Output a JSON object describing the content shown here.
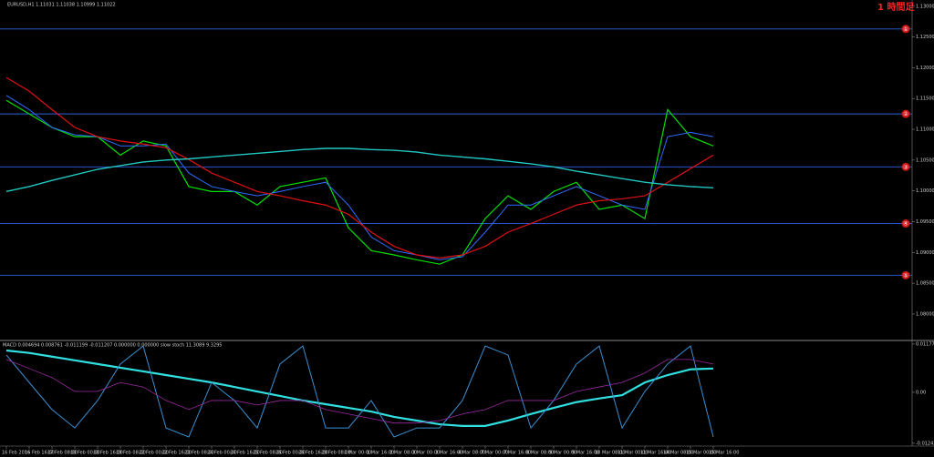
{
  "chart_data": [
    {
      "type": "line",
      "title": "EURUSD,H1  1.11031 1.11038 1.10999 1.11022",
      "annotation": "1 時間足",
      "categories": [
        "16 Feb 2016",
        "16 Feb 16:00",
        "17 Feb 08:00",
        "18 Feb 00:00",
        "18 Feb 16:00",
        "19 Feb 08:00",
        "22 Feb 00:00",
        "22 Feb 16:00",
        "23 Feb 08:00",
        "24 Feb 00:00",
        "24 Feb 16:00",
        "25 Feb 08:00",
        "26 Feb 00:00",
        "26 Feb 16:00",
        "29 Feb 08:00",
        "1 Mar 00:00",
        "1 Mar 16:00",
        "2 Mar 08:00",
        "3 Mar 00:00",
        "3 Mar 16:00",
        "4 Mar 08:00",
        "7 Mar 00:00",
        "7 Mar 16:00",
        "8 Mar 08:00",
        "9 Mar 00:00",
        "9 Mar 16:00",
        "10 Mar 08:00",
        "11 Mar 00:00",
        "11 Mar 16:00",
        "14 Mar 08:00",
        "15 Mar 00:00",
        "15 Mar 16:00"
      ],
      "series": [
        {
          "color": "#00e000",
          "values": [
            1.1147,
            1.1125,
            1.1103,
            1.1088,
            1.1088,
            1.1058,
            1.1081,
            1.1073,
            1.1007,
            1.0999,
            1.0999,
            1.0977,
            1.1007,
            1.1014,
            1.1021,
            1.094,
            1.0903,
            1.0896,
            1.0888,
            1.0881,
            1.0896,
            1.0955,
            1.0992,
            1.097,
            1.0999,
            1.1014,
            1.097,
            1.0977,
            1.0955,
            1.1132,
            1.1088,
            1.1073
          ]
        },
        {
          "color": "#2f6bff",
          "values": [
            1.1155,
            1.1132,
            1.1103,
            1.1091,
            1.1088,
            1.1073,
            1.1073,
            1.1076,
            1.1029,
            1.1007,
            1.0999,
            1.0992,
            1.0999,
            1.1007,
            1.1014,
            1.0977,
            1.0925,
            1.0903,
            1.0896,
            1.0888,
            1.0893,
            1.0933,
            1.0977,
            1.0977,
            1.0992,
            1.1007,
            1.0992,
            1.0977,
            1.097,
            1.1088,
            1.1095,
            1.1088
          ]
        },
        {
          "color": "#e01010",
          "values": [
            1.1184,
            1.1162,
            1.1132,
            1.1103,
            1.1088,
            1.1081,
            1.1076,
            1.107,
            1.1051,
            1.1029,
            1.1014,
            1.0999,
            1.0992,
            1.0984,
            1.0977,
            1.0962,
            1.0933,
            1.091,
            1.0896,
            1.0891,
            1.0896,
            1.091,
            1.0933,
            1.0947,
            1.0962,
            1.0977,
            1.0984,
            1.0987,
            1.0992,
            1.1014,
            1.1036,
            1.1058
          ]
        },
        {
          "color": "#20c8c0",
          "values": [
            1.0999,
            1.1007,
            1.1017,
            1.1026,
            1.1035,
            1.1041,
            1.1047,
            1.105,
            1.1052,
            1.1055,
            1.1058,
            1.1061,
            1.1064,
            1.1067,
            1.1069,
            1.1069,
            1.1067,
            1.1066,
            1.1063,
            1.1058,
            1.1055,
            1.1052,
            1.1048,
            1.1044,
            1.1039,
            1.1032,
            1.1026,
            1.102,
            1.1014,
            1.101,
            1.1007,
            1.1005
          ]
        }
      ],
      "levels": [
        1.1263,
        1.1125,
        1.1039,
        1.0947,
        1.0863
      ],
      "level_labels": [
        "①",
        "②",
        "③",
        "④",
        "⑤"
      ],
      "level_color": "#2f5fe0",
      "ylim": [
        1.076,
        1.131
      ],
      "yticks": [
        {
          "value": 1.08,
          "label": "1.08000"
        },
        {
          "value": 1.085,
          "label": "1.08500"
        },
        {
          "value": 1.09,
          "label": "1.09000"
        },
        {
          "value": 1.095,
          "label": "1.09500"
        },
        {
          "value": 1.1,
          "label": "1.10000"
        },
        {
          "value": 1.105,
          "label": "1.10500"
        },
        {
          "value": 1.11,
          "label": "1.11000"
        },
        {
          "value": 1.115,
          "label": "1.11500"
        },
        {
          "value": 1.12,
          "label": "1.12000"
        },
        {
          "value": 1.125,
          "label": "1.12500"
        },
        {
          "value": 1.13,
          "label": "1.13000"
        }
      ]
    },
    {
      "type": "line",
      "title": "MACD 0.004694 0.008761 -0.011199 -0.011207 0.000000 0.000000  slow stoch 11.3089 9.3295",
      "series": [
        {
          "color": "#30e0e0",
          "values": [
            0.0102,
            0.0096,
            0.0087,
            0.0078,
            0.0069,
            0.006,
            0.0051,
            0.0042,
            0.0033,
            0.0024,
            0.0013,
            0.0002,
            -0.0009,
            -0.002,
            -0.0029,
            -0.0038,
            -0.0047,
            -0.006,
            -0.0069,
            -0.0078,
            -0.0082,
            -0.0082,
            -0.0069,
            -0.0053,
            -0.0038,
            -0.0024,
            -0.0015,
            -0.0007,
            0.0024,
            0.0042,
            0.0056,
            0.0058
          ]
        },
        {
          "color": "#3a8fd0",
          "values": [
            0.0091,
            0.0024,
            -0.0042,
            -0.0087,
            -0.002,
            0.0069,
            0.0113,
            -0.0087,
            -0.0109,
            0.0024,
            -0.002,
            -0.0087,
            0.0069,
            0.0113,
            -0.0087,
            -0.0087,
            -0.002,
            -0.0109,
            -0.0087,
            -0.0087,
            -0.002,
            0.0113,
            0.0091,
            -0.0087,
            -0.002,
            0.0069,
            0.0113,
            -0.0087,
            0.0002,
            0.0069,
            0.0113,
            -0.0109
          ]
        },
        {
          "color": "#9a2aa0",
          "values": [
            0.008,
            0.0058,
            0.0036,
            0.0002,
            0.0002,
            0.0024,
            0.0013,
            -0.002,
            -0.0042,
            -0.002,
            -0.002,
            -0.0031,
            -0.002,
            -0.002,
            -0.0042,
            -0.0053,
            -0.0064,
            -0.0075,
            -0.0075,
            -0.0069,
            -0.0053,
            -0.0042,
            -0.002,
            -0.002,
            -0.002,
            0.0002,
            0.0013,
            0.0024,
            0.0047,
            0.008,
            0.008,
            0.0069
          ]
        }
      ],
      "ylim": [
        -0.0129,
        0.0122
      ],
      "yticks": [
        0.011773,
        {
          "value": 0,
          "label": "0.00"
        },
        -0.012425
      ]
    }
  ]
}
